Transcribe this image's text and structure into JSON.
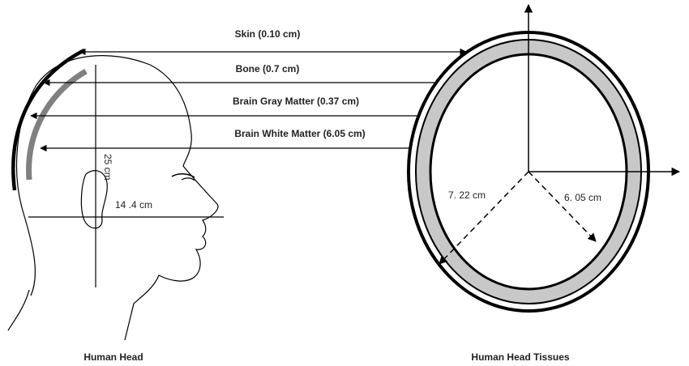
{
  "layers": {
    "skin": "Skin (0.10 cm)",
    "bone": "Bone (0.7 cm)",
    "gray_matter": "Brain Gray Matter (0.37 cm)",
    "white_matter": "Brain White Matter (6.05 cm)"
  },
  "head": {
    "height": "25 cm",
    "width": "14 .4 cm",
    "caption": "Human Head"
  },
  "tissues": {
    "outer_radius": "7. 22 cm",
    "inner_radius": "6. 05 cm",
    "caption": "Human Head Tissues"
  },
  "colors": {
    "line": "#000000",
    "bone_fill": "#c8c8c8",
    "arc_gray": "#808080"
  }
}
